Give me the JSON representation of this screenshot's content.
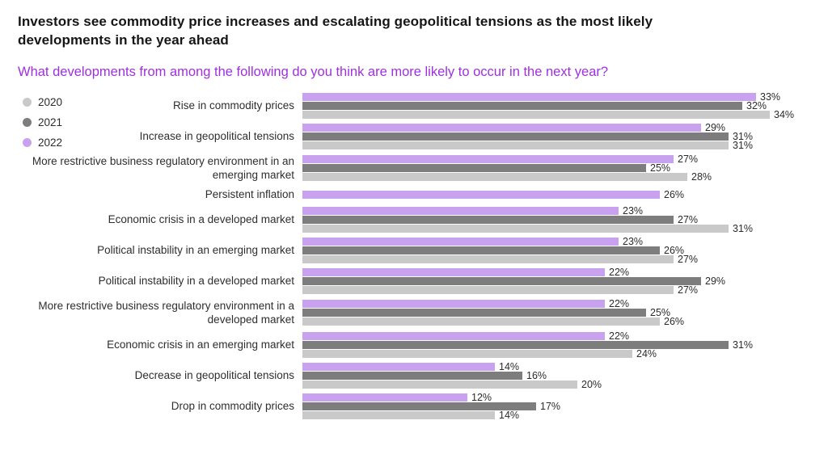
{
  "title": "Investors see commodity price increases and escalating geopolitical tensions as the most likely developments in the year ahead",
  "question": "What developments from among the following do you think are more likely to occur in the next year?",
  "colors": {
    "title": "#161616",
    "question": "#a02fe0",
    "bar_2022": "#c9a2ef",
    "bar_2021": "#7d7d7d",
    "bar_2020": "#c9c9c9"
  },
  "legend": [
    {
      "label": "2020",
      "color": "#c9c9c9"
    },
    {
      "label": "2021",
      "color": "#7d7d7d"
    },
    {
      "label": "2022",
      "color": "#c9a2ef"
    }
  ],
  "chart_data": {
    "type": "bar",
    "orientation": "horizontal",
    "value_suffix": "%",
    "xlim": [
      0,
      36
    ],
    "categories": [
      "Rise in commodity prices",
      "Increase in geopolitical tensions",
      "More restrictive business regulatory environment in an emerging market",
      "Persistent inflation",
      "Economic crisis in a developed market",
      "Political instability in an emerging market",
      "Political instability in a developed market",
      "More restrictive business regulatory environment in a developed market",
      "Economic crisis in an emerging market",
      "Decrease in geopolitical tensions",
      "Drop in commodity prices"
    ],
    "series": [
      {
        "name": "2022",
        "color": "#c9a2ef",
        "values": [
          33,
          29,
          27,
          26,
          23,
          23,
          22,
          22,
          22,
          14,
          12
        ]
      },
      {
        "name": "2021",
        "color": "#7d7d7d",
        "values": [
          32,
          31,
          25,
          null,
          27,
          26,
          29,
          25,
          31,
          16,
          17
        ]
      },
      {
        "name": "2020",
        "color": "#c9c9c9",
        "values": [
          34,
          31,
          28,
          null,
          31,
          27,
          27,
          26,
          24,
          20,
          14
        ]
      }
    ]
  }
}
